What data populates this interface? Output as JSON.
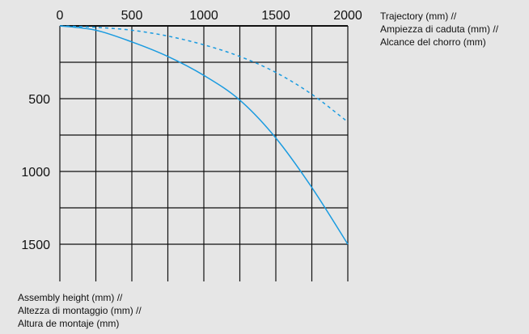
{
  "chart_data": {
    "type": "line",
    "title": "",
    "xlabel": [
      "Trajectory (mm) //",
      "Ampiezza di caduta (mm) //",
      "Alcance del chorro (mm)"
    ],
    "ylabel": [
      "Assembly height (mm) //",
      "Altezza di montaggio (mm) //",
      "Altura de montaje (mm)"
    ],
    "x_ticks": [
      "0",
      "500",
      "1000",
      "1500",
      "2000"
    ],
    "y_ticks": [
      "500",
      "1000",
      "1500"
    ],
    "xlim": [
      0,
      2000
    ],
    "ylim": [
      0,
      1500
    ],
    "y_inverted": true,
    "grid": true,
    "grid_step_x": 250,
    "grid_step_y": 250,
    "series": [
      {
        "style": "solid",
        "color": "#1a9be0",
        "x": [
          0,
          250,
          500,
          750,
          1000,
          1250,
          1500,
          1750,
          2000
        ],
        "y": [
          0,
          30,
          110,
          210,
          340,
          510,
          770,
          1110,
          1500
        ]
      },
      {
        "style": "dashed",
        "color": "#1a9be0",
        "x": [
          0,
          250,
          500,
          750,
          1000,
          1250,
          1500,
          1750,
          2000
        ],
        "y": [
          0,
          10,
          30,
          70,
          130,
          210,
          320,
          470,
          660
        ]
      }
    ]
  }
}
